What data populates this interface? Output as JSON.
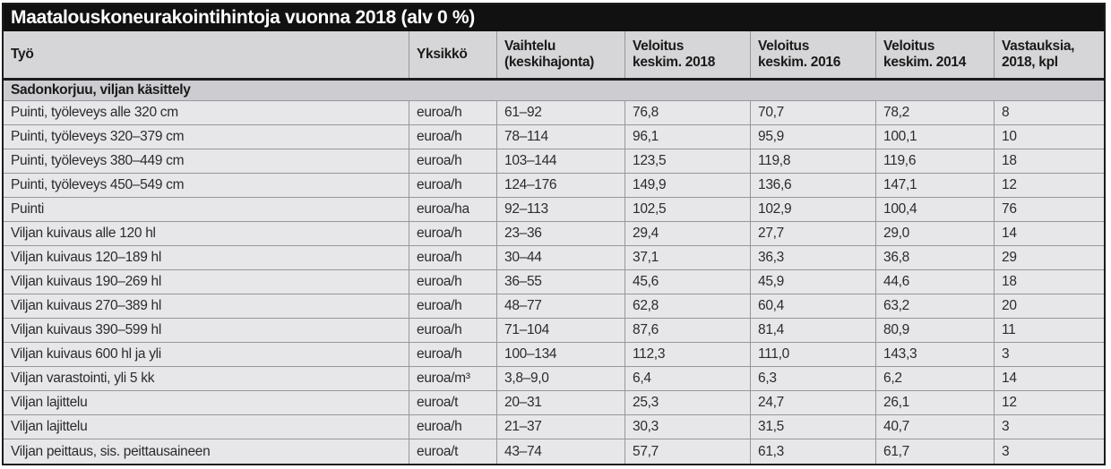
{
  "title": "Maatalouskoneurakointihintoja vuonna 2018 (alv 0 %)",
  "table": {
    "headers": [
      "Työ",
      "Yksikkö",
      "Vaihtelu\n(keskihajonta)",
      "Veloitus\nkeskim. 2018",
      "Veloitus\nkeskim. 2016",
      "Veloitus\nkeskim. 2014",
      "Vastauksia,\n2018, kpl"
    ],
    "section_header": "Sadonkorjuu, viljan käsittely",
    "rows": [
      [
        "Puinti, työleveys alle 320 cm",
        "euroa/h",
        "61–92",
        "76,8",
        "70,7",
        "78,2",
        "8"
      ],
      [
        "Puinti, työleveys 320–379 cm",
        "euroa/h",
        "78–114",
        "96,1",
        "95,9",
        "100,1",
        "10"
      ],
      [
        "Puinti, työleveys 380–449 cm",
        "euroa/h",
        "103–144",
        "123,5",
        "119,8",
        "119,6",
        "18"
      ],
      [
        "Puinti, työleveys 450–549 cm",
        "euroa/h",
        "124–176",
        "149,9",
        "136,6",
        "147,1",
        "12"
      ],
      [
        "Puinti",
        "euroa/ha",
        "92–113",
        "102,5",
        "102,9",
        "100,4",
        "76"
      ],
      [
        "Viljan kuivaus alle 120 hl",
        "euroa/h",
        "23–36",
        "29,4",
        "27,7",
        "29,0",
        "14"
      ],
      [
        "Viljan kuivaus 120–189 hl",
        "euroa/h",
        "30–44",
        "37,1",
        "36,3",
        "36,8",
        "29"
      ],
      [
        "Viljan kuivaus 190–269 hl",
        "euroa/h",
        "36–55",
        "45,6",
        "45,9",
        "44,6",
        "18"
      ],
      [
        "Viljan kuivaus 270–389 hl",
        "euroa/h",
        "48–77",
        "62,8",
        "60,4",
        "63,2",
        "20"
      ],
      [
        "Viljan kuivaus 390–599 hl",
        "euroa/h",
        "71–104",
        "87,6",
        "81,4",
        "80,9",
        "11"
      ],
      [
        "Viljan kuivaus 600 hl ja yli",
        "euroa/h",
        "100–134",
        "112,3",
        "111,0",
        "143,3",
        "3"
      ],
      [
        "Viljan varastointi, yli 5 kk",
        "euroa/m³",
        "3,8–9,0",
        "6,4",
        "6,3",
        "6,2",
        "14"
      ],
      [
        "Viljan lajittelu",
        "euroa/t",
        "20–31",
        "25,3",
        "24,7",
        "26,1",
        "12"
      ],
      [
        "Viljan lajittelu",
        "euroa/h",
        "21–37",
        "30,3",
        "31,5",
        "40,7",
        "3"
      ],
      [
        "Viljan peittaus, sis. peittausaineen",
        "euroa/t",
        "43–74",
        "57,7",
        "61,3",
        "61,7",
        "3"
      ]
    ]
  },
  "colors": {
    "title_bar_bg": "#111111",
    "title_text": "#ffffff",
    "header_bg": "#d6d6d8",
    "section_bg": "#cdcdd1",
    "row_bg": "#e7e7ea",
    "grid_line": "#97979b",
    "heavy_border": "#1c1c1c",
    "text": "#2b2b2b"
  }
}
